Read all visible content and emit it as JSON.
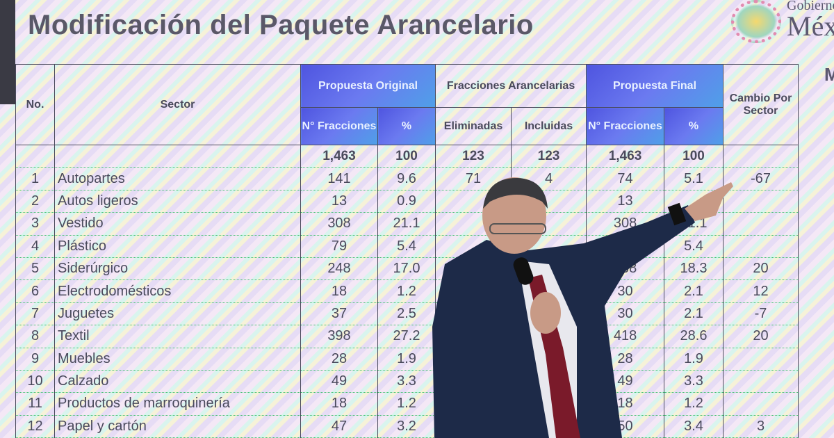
{
  "title": "Modificación del Paquete Arancelario",
  "logo": {
    "line1": "Gobierno de",
    "line2": "México"
  },
  "side_letter": "M",
  "headers": {
    "no": "No.",
    "sector": "Sector",
    "orig": "Propuesta Original",
    "fracc": "Fracciones Arancelarias",
    "final": "Propuesta Final",
    "cambio": "Cambio Por Sector",
    "n_fracc": "N° Fracciones",
    "pct": "%",
    "elim": "Eliminadas",
    "incl": "Incluidas"
  },
  "total": {
    "orig_n": "1,463",
    "orig_pct": "100",
    "elim": "123",
    "incl": "123",
    "final_n": "1,463",
    "final_pct": "100"
  },
  "rows": [
    {
      "no": "1",
      "sector": "Autopartes",
      "orig_n": "141",
      "orig_pct": "9.6",
      "elim": "71",
      "incl": "4",
      "final_n": "74",
      "final_pct": "5.1",
      "cambio": "-67"
    },
    {
      "no": "2",
      "sector": "Autos ligeros",
      "orig_n": "13",
      "orig_pct": "0.9",
      "elim": "",
      "incl": "",
      "final_n": "13",
      "final_pct": "",
      "cambio": ""
    },
    {
      "no": "3",
      "sector": "Vestido",
      "orig_n": "308",
      "orig_pct": "21.1",
      "elim": "",
      "incl": "",
      "final_n": "308",
      "final_pct": "21.1",
      "cambio": ""
    },
    {
      "no": "4",
      "sector": "Plástico",
      "orig_n": "79",
      "orig_pct": "5.4",
      "elim": "",
      "incl": "",
      "final_n": "",
      "final_pct": "5.4",
      "cambio": ""
    },
    {
      "no": "5",
      "sector": "Siderúrgico",
      "orig_n": "248",
      "orig_pct": "17.0",
      "elim": "",
      "incl": "",
      "final_n": "268",
      "final_pct": "18.3",
      "cambio": "20"
    },
    {
      "no": "6",
      "sector": "Electrodomésticos",
      "orig_n": "18",
      "orig_pct": "1.2",
      "elim": "",
      "incl": "",
      "final_n": "30",
      "final_pct": "2.1",
      "cambio": "12"
    },
    {
      "no": "7",
      "sector": "Juguetes",
      "orig_n": "37",
      "orig_pct": "2.5",
      "elim": "",
      "incl": "",
      "final_n": "30",
      "final_pct": "2.1",
      "cambio": "-7"
    },
    {
      "no": "8",
      "sector": "Textil",
      "orig_n": "398",
      "orig_pct": "27.2",
      "elim": "",
      "incl": "",
      "final_n": "418",
      "final_pct": "28.6",
      "cambio": "20"
    },
    {
      "no": "9",
      "sector": "Muebles",
      "orig_n": "28",
      "orig_pct": "1.9",
      "elim": "",
      "incl": "",
      "final_n": "28",
      "final_pct": "1.9",
      "cambio": ""
    },
    {
      "no": "10",
      "sector": "Calzado",
      "orig_n": "49",
      "orig_pct": "3.3",
      "elim": "",
      "incl": "",
      "final_n": "49",
      "final_pct": "3.3",
      "cambio": ""
    },
    {
      "no": "11",
      "sector": "Productos de marroquinería",
      "orig_n": "18",
      "orig_pct": "1.2",
      "elim": "",
      "incl": "",
      "final_n": "18",
      "final_pct": "1.2",
      "cambio": ""
    },
    {
      "no": "12",
      "sector": "Papel y cartón",
      "orig_n": "47",
      "orig_pct": "3.2",
      "elim": "",
      "incl": "",
      "final_n": "50",
      "final_pct": "3.4",
      "cambio": "3"
    }
  ]
}
